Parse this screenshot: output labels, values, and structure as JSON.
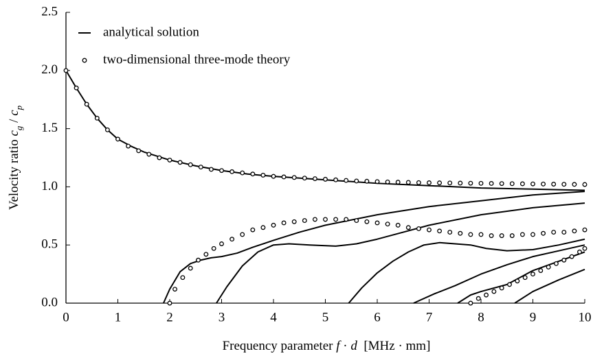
{
  "chart_data": {
    "type": "line",
    "xlabel": [
      "Frequency parameter ",
      "f",
      " · ",
      "d",
      "  [MHz · mm]"
    ],
    "ylabel": [
      "Velocity ratio ",
      "c",
      "g",
      " / ",
      "c",
      "p"
    ],
    "xlim": [
      0,
      10
    ],
    "xticks": [
      0,
      1,
      2,
      3,
      4,
      5,
      6,
      7,
      8,
      9,
      10
    ],
    "ylim": [
      0,
      2.5
    ],
    "yticks": [
      {
        "value": 0,
        "label": "0.0"
      },
      0.5,
      {
        "value": 1,
        "label": "1.0"
      },
      1.5,
      {
        "value": 2,
        "label": "2.0"
      },
      2.5
    ],
    "legend": "upper left",
    "series": [
      {
        "name": "analytical solution",
        "style": "line",
        "color": "#000000",
        "curves": [
          {
            "x": [
              0,
              0.2,
              0.4,
              0.6,
              0.8,
              1,
              1.25,
              1.5,
              2,
              2.5,
              3,
              3.5,
              4,
              5,
              6,
              7,
              8,
              9,
              10
            ],
            "values": [
              2.0,
              1.85,
              1.71,
              1.59,
              1.49,
              1.41,
              1.35,
              1.3,
              1.23,
              1.18,
              1.14,
              1.11,
              1.09,
              1.06,
              1.03,
              1.01,
              0.99,
              0.98,
              0.97
            ]
          },
          {
            "x": [
              1.88,
              2.0,
              2.2,
              2.4,
              2.6,
              2.8,
              3.0,
              3.3,
              3.6,
              4.0,
              4.5,
              5.0,
              6.0,
              7.0,
              8.0,
              9.0,
              10.0
            ],
            "values": [
              0,
              0.12,
              0.27,
              0.34,
              0.37,
              0.39,
              0.4,
              0.43,
              0.48,
              0.54,
              0.61,
              0.67,
              0.76,
              0.83,
              0.88,
              0.93,
              0.96
            ]
          },
          {
            "x": [
              2.9,
              3.1,
              3.4,
              3.7,
              4.0,
              4.3,
              4.7,
              5.2,
              5.6,
              6.0,
              6.5,
              7.0,
              8.0,
              9.0,
              10.0
            ],
            "values": [
              0,
              0.14,
              0.32,
              0.44,
              0.5,
              0.51,
              0.5,
              0.49,
              0.51,
              0.55,
              0.61,
              0.67,
              0.76,
              0.82,
              0.86
            ]
          },
          {
            "x": [
              5.45,
              5.7,
              6.0,
              6.3,
              6.6,
              6.9,
              7.2,
              7.5,
              7.8,
              8.1,
              8.5,
              9.0,
              9.5,
              10.0
            ],
            "values": [
              0,
              0.13,
              0.26,
              0.36,
              0.44,
              0.5,
              0.52,
              0.51,
              0.5,
              0.47,
              0.45,
              0.46,
              0.5,
              0.55
            ]
          },
          {
            "x": [
              6.7,
              7.1,
              7.5,
              8.0,
              8.5,
              9.0,
              9.5,
              10.0
            ],
            "values": [
              0,
              0.08,
              0.15,
              0.25,
              0.33,
              0.4,
              0.45,
              0.5
            ]
          },
          {
            "x": [
              7.55,
              7.8,
              8.0,
              8.5,
              9.0,
              9.5,
              10.0
            ],
            "values": [
              0,
              0.07,
              0.1,
              0.16,
              0.28,
              0.36,
              0.44
            ]
          },
          {
            "x": [
              8.65,
              9.0,
              9.5,
              10.0
            ],
            "values": [
              0,
              0.1,
              0.2,
              0.29
            ]
          }
        ]
      },
      {
        "name": "two-dimensional three-mode theory",
        "style": "markers",
        "color": "#000000",
        "curves": [
          {
            "x": [
              0,
              0.2,
              0.4,
              0.6,
              0.8,
              1,
              1.2,
              1.4,
              1.6,
              1.8,
              2,
              2.2,
              2.4,
              2.6,
              2.8,
              3,
              3.2,
              3.4,
              3.6,
              3.8,
              4,
              4.2,
              4.4,
              4.6,
              4.8,
              5,
              5.2,
              5.4,
              5.6,
              5.8,
              6,
              6.2,
              6.4,
              6.6,
              6.8,
              7,
              7.2,
              7.4,
              7.6,
              7.8,
              8,
              8.2,
              8.4,
              8.6,
              8.8,
              9,
              9.2,
              9.4,
              9.6,
              9.8,
              10
            ],
            "values": [
              2.0,
              1.85,
              1.71,
              1.59,
              1.49,
              1.41,
              1.35,
              1.31,
              1.28,
              1.25,
              1.23,
              1.21,
              1.19,
              1.17,
              1.15,
              1.14,
              1.13,
              1.12,
              1.11,
              1.1,
              1.09,
              1.085,
              1.08,
              1.075,
              1.07,
              1.065,
              1.06,
              1.055,
              1.05,
              1.048,
              1.045,
              1.042,
              1.04,
              1.038,
              1.036,
              1.035,
              1.034,
              1.033,
              1.032,
              1.031,
              1.03,
              1.029,
              1.028,
              1.027,
              1.026,
              1.025,
              1.024,
              1.023,
              1.022,
              1.021,
              1.02
            ]
          },
          {
            "x": [
              2.0,
              2.1,
              2.25,
              2.4,
              2.55,
              2.7,
              2.85,
              3,
              3.2,
              3.4,
              3.6,
              3.8,
              4,
              4.2,
              4.4,
              4.6,
              4.8,
              5,
              5.2,
              5.4,
              5.6,
              5.8,
              6,
              6.2,
              6.4,
              6.6,
              6.8,
              7,
              7.2,
              7.4,
              7.6,
              7.8,
              8,
              8.2,
              8.4,
              8.6,
              8.8,
              9,
              9.2,
              9.4,
              9.6,
              9.8,
              10
            ],
            "values": [
              0,
              0.12,
              0.22,
              0.3,
              0.37,
              0.42,
              0.47,
              0.51,
              0.55,
              0.59,
              0.63,
              0.65,
              0.67,
              0.69,
              0.7,
              0.71,
              0.72,
              0.72,
              0.72,
              0.72,
              0.71,
              0.7,
              0.69,
              0.68,
              0.67,
              0.65,
              0.64,
              0.63,
              0.62,
              0.61,
              0.6,
              0.59,
              0.59,
              0.58,
              0.58,
              0.58,
              0.59,
              0.59,
              0.6,
              0.61,
              0.61,
              0.62,
              0.63
            ]
          },
          {
            "x": [
              7.8,
              7.95,
              8.1,
              8.25,
              8.4,
              8.55,
              8.7,
              8.85,
              9,
              9.15,
              9.3,
              9.45,
              9.6,
              9.75,
              9.9,
              10
            ],
            "values": [
              0,
              0.04,
              0.07,
              0.1,
              0.13,
              0.16,
              0.19,
              0.22,
              0.25,
              0.28,
              0.31,
              0.34,
              0.37,
              0.4,
              0.44,
              0.47
            ]
          }
        ]
      }
    ]
  }
}
